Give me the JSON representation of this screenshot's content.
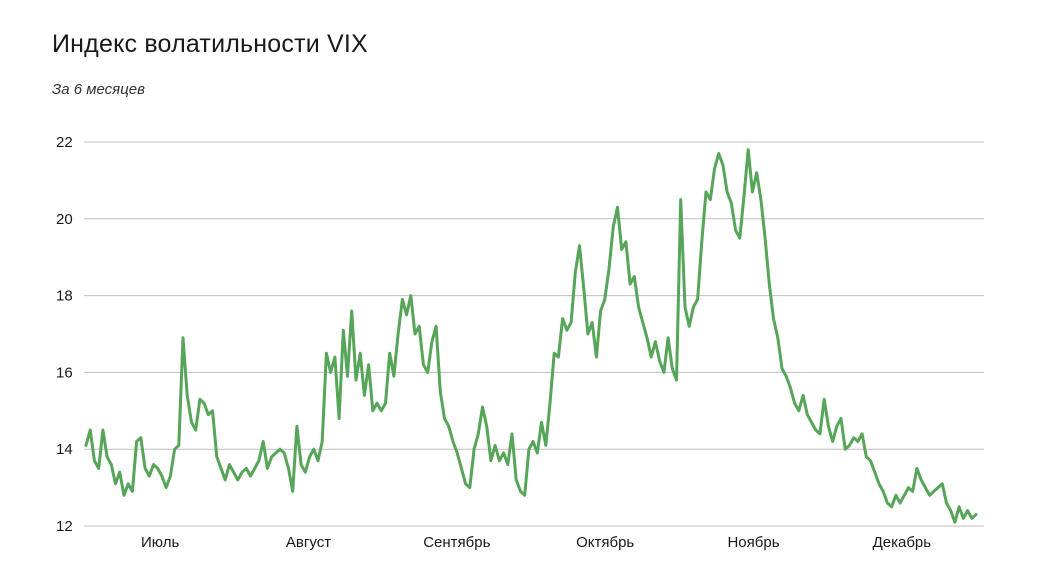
{
  "title": "Индекс волатильности VIX",
  "subtitle": "За 6 месяцев",
  "colors": {
    "line": "#56a559",
    "grid": "#bfbfbf",
    "text": "#1a1a1a"
  },
  "chart_data": {
    "type": "line",
    "title": "Индекс волатильности VIX",
    "subtitle": "За 6 месяцев",
    "xlabel": "",
    "ylabel": "",
    "ylim": [
      12,
      22
    ],
    "yticks": [
      12,
      14,
      16,
      18,
      20,
      22
    ],
    "xticks": [
      "Июль",
      "Август",
      "Сентябрь",
      "Октябрь",
      "Ноябрь",
      "Декабрь"
    ],
    "grid": true,
    "legend": "none",
    "series": [
      {
        "values": [
          14.1,
          14.5,
          13.7,
          13.5,
          14.5,
          13.8,
          13.6,
          13.1,
          13.4,
          12.8,
          13.1,
          12.9,
          14.2,
          14.3,
          13.5,
          13.3,
          13.6,
          13.5,
          13.3,
          13.0,
          13.3,
          14.0,
          14.1,
          16.9,
          15.4,
          14.7,
          14.5,
          15.3,
          15.2,
          14.9,
          15.0,
          13.8,
          13.5,
          13.2,
          13.6,
          13.4,
          13.2,
          13.4,
          13.5,
          13.3,
          13.5,
          13.7,
          14.2,
          13.5,
          13.8,
          13.9,
          14.0,
          13.9,
          13.5,
          12.9,
          14.6,
          13.6,
          13.4,
          13.8,
          14.0,
          13.7,
          14.2,
          16.5,
          16.0,
          16.4,
          14.8,
          17.1,
          15.9,
          17.6,
          15.8,
          16.5,
          15.4,
          16.2,
          15.0,
          15.2,
          15.0,
          15.2,
          16.5,
          15.9,
          17.0,
          17.9,
          17.5,
          18.0,
          17.0,
          17.2,
          16.2,
          16.0,
          16.8,
          17.2,
          15.5,
          14.8,
          14.6,
          14.2,
          13.9,
          13.5,
          13.1,
          13.0,
          14.0,
          14.4,
          15.1,
          14.6,
          13.7,
          14.1,
          13.7,
          13.9,
          13.6,
          14.4,
          13.2,
          12.9,
          12.8,
          14.0,
          14.2,
          13.9,
          14.7,
          14.1,
          15.2,
          16.5,
          16.4,
          17.4,
          17.1,
          17.3,
          18.6,
          19.3,
          18.2,
          17.0,
          17.3,
          16.4,
          17.6,
          17.9,
          18.7,
          19.8,
          20.3,
          19.2,
          19.4,
          18.3,
          18.5,
          17.7,
          17.3,
          16.9,
          16.4,
          16.8,
          16.3,
          16.0,
          16.9,
          16.1,
          15.8,
          20.5,
          17.7,
          17.2,
          17.7,
          17.9,
          19.4,
          20.7,
          20.5,
          21.3,
          21.7,
          21.4,
          20.7,
          20.4,
          19.7,
          19.5,
          20.6,
          21.8,
          20.7,
          21.2,
          20.5,
          19.5,
          18.3,
          17.4,
          16.9,
          16.1,
          15.9,
          15.6,
          15.2,
          15.0,
          15.4,
          14.9,
          14.7,
          14.5,
          14.4,
          15.3,
          14.6,
          14.2,
          14.6,
          14.8,
          14.0,
          14.1,
          14.3,
          14.2,
          14.4,
          13.8,
          13.7,
          13.4,
          13.1,
          12.9,
          12.6,
          12.5,
          12.8,
          12.6,
          12.8,
          13.0,
          12.9,
          13.5,
          13.2,
          13.0,
          12.8,
          12.9,
          13.0,
          13.1,
          12.6,
          12.4,
          12.1,
          12.5,
          12.2,
          12.4,
          12.2,
          12.3
        ]
      }
    ]
  }
}
